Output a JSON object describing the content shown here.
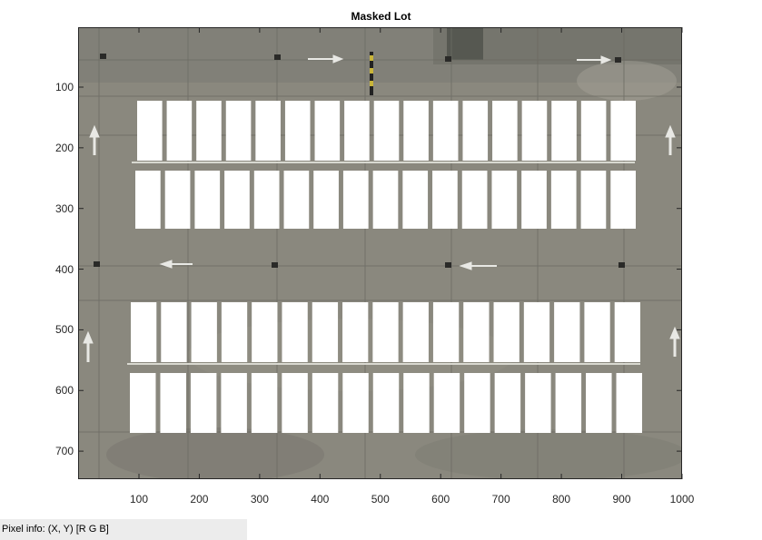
{
  "figure": {
    "title": "Masked Lot",
    "pixel_info": "Pixel info: (X, Y)  [R G B]"
  },
  "axes": {
    "x_ticks": [
      "100",
      "200",
      "300",
      "400",
      "500",
      "600",
      "700",
      "800",
      "900",
      "1000"
    ],
    "y_ticks": [
      "100",
      "200",
      "300",
      "400",
      "500",
      "600",
      "700"
    ]
  },
  "image": {
    "content": "aerial view of parking lot with parking stalls masked in white",
    "mask_color": "#ffffff",
    "pavement_color": "#8a887e"
  }
}
